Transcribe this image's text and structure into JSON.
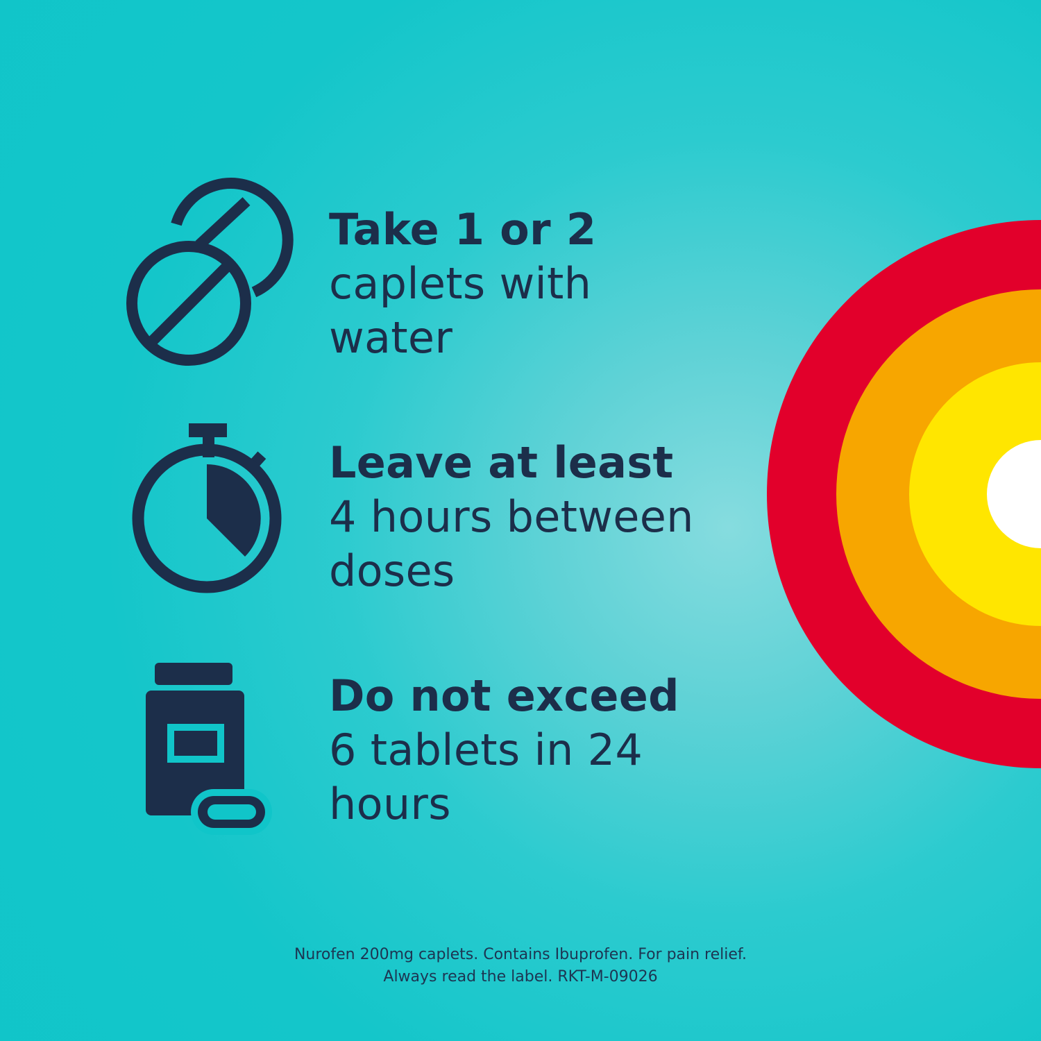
{
  "colors": {
    "background": "#10c5c9",
    "navy": "#1c2e4a",
    "ring_red": "#e2002b",
    "ring_orange": "#f7a600",
    "ring_yellow": "#ffe600",
    "ring_white": "#ffffff"
  },
  "instructions": [
    {
      "icon": "caplets-icon",
      "heading": "Take 1 or 2",
      "lines": [
        "caplets with",
        "water"
      ]
    },
    {
      "icon": "stopwatch-icon",
      "heading": "Leave at least",
      "lines": [
        "4 hours between",
        "doses"
      ]
    },
    {
      "icon": "pill-bottle-icon",
      "heading": "Do not exceed",
      "lines": [
        "6 tablets in 24",
        "hours"
      ]
    }
  ],
  "footnote": {
    "line1": "Nurofen 200mg caplets. Contains Ibuprofen. For pain relief.",
    "line2": "Always read the label. RKT-M-09026"
  }
}
